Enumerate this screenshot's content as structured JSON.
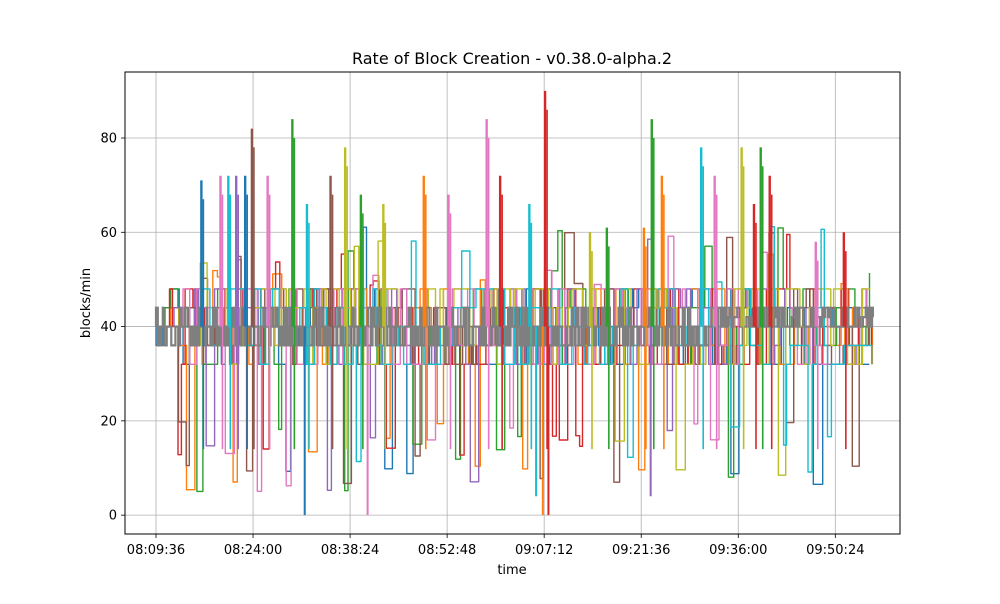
{
  "chart_data": {
    "type": "line",
    "title": "Rate of Block Creation  -  v0.38.0-alpha.2",
    "xlabel": "time",
    "ylabel": "blocks/min",
    "x_domain": [
      "08:09:36",
      "09:56:00"
    ],
    "xlim": [
      "08:05:00",
      "10:00:00"
    ],
    "ylim": [
      -4,
      94
    ],
    "x_ticks": [
      "08:09:36",
      "08:24:00",
      "08:38:24",
      "08:52:48",
      "09:07:12",
      "09:21:36",
      "09:36:00",
      "09:50:24"
    ],
    "y_ticks": [
      0,
      20,
      40,
      60,
      80
    ],
    "grid": true,
    "series_colors": [
      "#1f77b4",
      "#ff7f0e",
      "#2ca02c",
      "#d62728",
      "#9467bd",
      "#8c564b",
      "#e377c2",
      "#7f7f7f",
      "#bcbd22",
      "#17becf"
    ],
    "dominant_series_color": "#7f7f7f",
    "note_values": "Many overlapping series; base rate oscillates between about 36 and 44 blocks/min with spikes up to about 90 and dips to 0.",
    "peaks": [
      {
        "time": "08:16:20",
        "value": 71,
        "color": "#1f77b4"
      },
      {
        "time": "08:19:10",
        "value": 72,
        "color": "#e377c2"
      },
      {
        "time": "08:20:20",
        "value": 72,
        "color": "#17becf"
      },
      {
        "time": "08:21:30",
        "value": 72,
        "color": "#9467bd"
      },
      {
        "time": "08:22:50",
        "value": 72,
        "color": "#1f77b4"
      },
      {
        "time": "08:23:50",
        "value": 82,
        "color": "#8c564b"
      },
      {
        "time": "08:26:10",
        "value": 72,
        "color": "#e377c2"
      },
      {
        "time": "08:29:50",
        "value": 84,
        "color": "#2ca02c"
      },
      {
        "time": "08:32:00",
        "value": 66,
        "color": "#17becf"
      },
      {
        "time": "08:35:30",
        "value": 72,
        "color": "#8c564b"
      },
      {
        "time": "08:37:40",
        "value": 78,
        "color": "#bcbd22"
      },
      {
        "time": "08:40:00",
        "value": 68,
        "color": "#2ca02c"
      },
      {
        "time": "08:43:20",
        "value": 66,
        "color": "#bcbd22"
      },
      {
        "time": "08:49:20",
        "value": 72,
        "color": "#ff7f0e"
      },
      {
        "time": "08:53:00",
        "value": 68,
        "color": "#e377c2"
      },
      {
        "time": "08:58:40",
        "value": 84,
        "color": "#e377c2"
      },
      {
        "time": "09:00:40",
        "value": 72,
        "color": "#d62728"
      },
      {
        "time": "09:05:00",
        "value": 66,
        "color": "#17becf"
      },
      {
        "time": "09:07:20",
        "value": 90,
        "color": "#d62728"
      },
      {
        "time": "09:14:00",
        "value": 60,
        "color": "#bcbd22"
      },
      {
        "time": "09:16:30",
        "value": 61,
        "color": "#2ca02c"
      },
      {
        "time": "09:22:00",
        "value": 61,
        "color": "#ff7f0e"
      },
      {
        "time": "09:23:10",
        "value": 84,
        "color": "#2ca02c"
      },
      {
        "time": "09:24:40",
        "value": 72,
        "color": "#ff7f0e"
      },
      {
        "time": "09:30:30",
        "value": 78,
        "color": "#17becf"
      },
      {
        "time": "09:32:30",
        "value": 72,
        "color": "#e377c2"
      },
      {
        "time": "09:36:30",
        "value": 78,
        "color": "#bcbd22"
      },
      {
        "time": "09:38:20",
        "value": 66,
        "color": "#d62728"
      },
      {
        "time": "09:39:20",
        "value": 78,
        "color": "#2ca02c"
      },
      {
        "time": "09:40:40",
        "value": 72,
        "color": "#d62728"
      },
      {
        "time": "09:47:30",
        "value": 58,
        "color": "#e377c2"
      },
      {
        "time": "09:51:40",
        "value": 60,
        "color": "#d62728"
      }
    ],
    "troughs": [
      {
        "time": "08:31:40",
        "value": 0,
        "color": "#1f77b4"
      },
      {
        "time": "08:41:00",
        "value": 0,
        "color": "#e377c2"
      },
      {
        "time": "09:06:00",
        "value": 4,
        "color": "#17becf"
      },
      {
        "time": "09:07:00",
        "value": 0,
        "color": "#ff7f0e"
      },
      {
        "time": "09:07:50",
        "value": 0,
        "color": "#d62728"
      },
      {
        "time": "09:23:00",
        "value": 4,
        "color": "#9467bd"
      }
    ]
  }
}
